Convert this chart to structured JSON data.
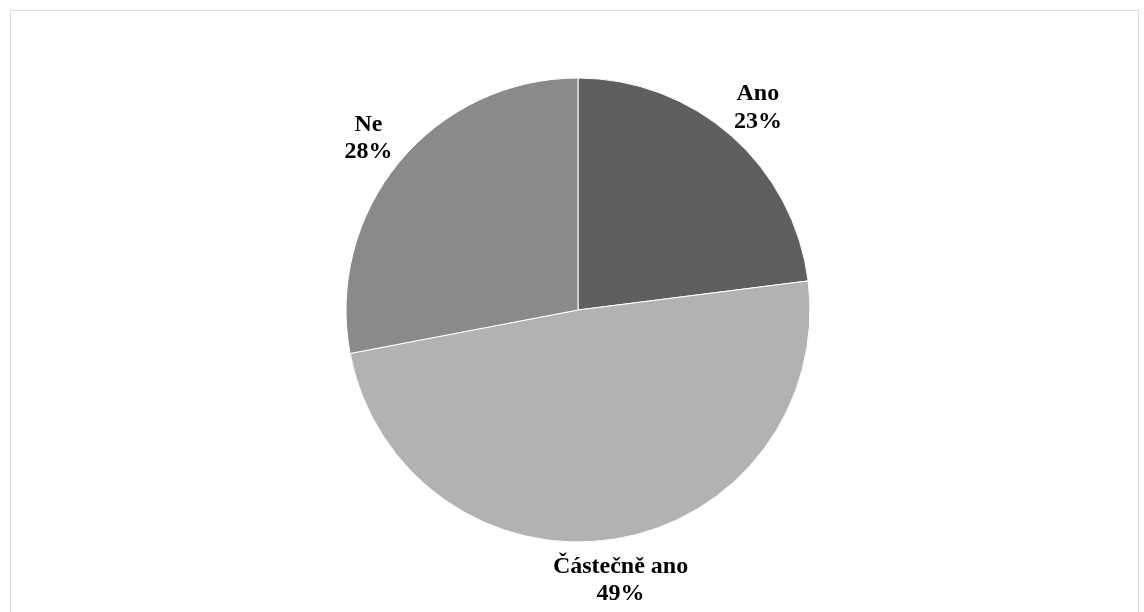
{
  "chart_data": {
    "type": "pie",
    "categories": [
      "Ano",
      "Částečně ano",
      "Ne"
    ],
    "values": [
      23,
      49,
      28
    ],
    "value_labels": [
      "23%",
      "49%",
      "28%"
    ],
    "colors": [
      "#5f5f5f",
      "#b2b2b2",
      "#8a8a8a"
    ]
  }
}
